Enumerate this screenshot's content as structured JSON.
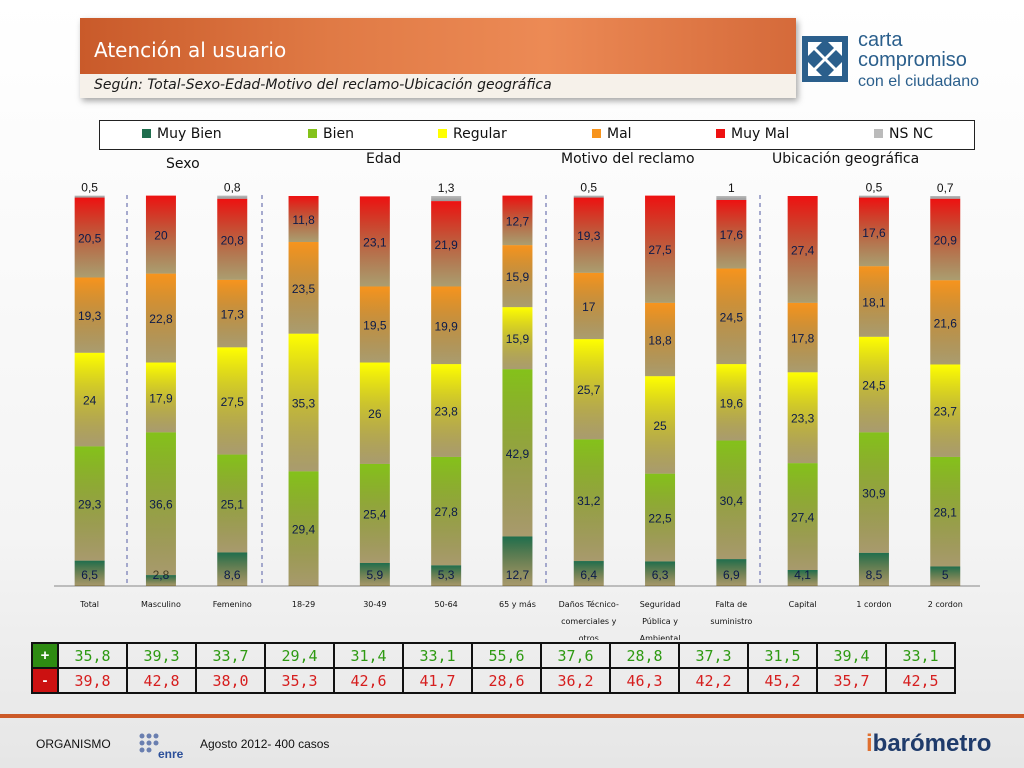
{
  "header": {
    "title": "Atención al usuario",
    "subtitle": "Según: Total-Sexo-Edad-Motivo del reclamo-Ubicación geográfica"
  },
  "logo": {
    "line1": "carta",
    "line2": "compromiso",
    "line3": "con el ciudadano"
  },
  "colors": {
    "muy_bien": "#1f6e4e",
    "bien": "#84c21a",
    "regular": "#ffff00",
    "mal": "#f7941d",
    "muy_mal": "#ee1111",
    "ns_nc": "#bbbbbb",
    "accent": "#cc5a28"
  },
  "chart_data": {
    "type": "bar",
    "stacked": true,
    "percent": true,
    "groups": [
      {
        "label": "Sexo",
        "categories": [
          1,
          2
        ]
      },
      {
        "label": "Edad",
        "categories": [
          3,
          4,
          5,
          6
        ]
      },
      {
        "label": "Motivo del reclamo",
        "categories": [
          7,
          8,
          9
        ]
      },
      {
        "label": "Ubicación geográfica",
        "categories": [
          10,
          11,
          12
        ]
      }
    ],
    "categories": [
      "Total",
      "Masculino",
      "Femenino",
      "18-29",
      "30-49",
      "50-64",
      "65 y más",
      "Daños Técnico-comerciales y otros",
      "Seguridad Pública y Ambiental",
      "Falta de suministro",
      "Capital",
      "1 cordon",
      "2 cordon"
    ],
    "category_lines": [
      [
        "Total"
      ],
      [
        "Masculino"
      ],
      [
        "Femenino"
      ],
      [
        "18-29"
      ],
      [
        "30-49"
      ],
      [
        "50-64"
      ],
      [
        "65 y más"
      ],
      [
        "Daños Técnico-",
        "comerciales y",
        "otros"
      ],
      [
        "Seguridad",
        "Pública y",
        "Ambiental"
      ],
      [
        "Falta de",
        "suministro"
      ],
      [
        "Capital"
      ],
      [
        "1 cordon"
      ],
      [
        "2 cordon"
      ]
    ],
    "series": [
      {
        "name": "Muy Bien",
        "values": [
          6.5,
          2.8,
          8.6,
          0,
          5.9,
          5.3,
          12.7,
          6.4,
          6.3,
          6.9,
          4.1,
          8.5,
          5
        ]
      },
      {
        "name": "Bien",
        "values": [
          29.3,
          36.6,
          25.1,
          29.4,
          25.4,
          27.8,
          42.9,
          31.2,
          22.5,
          30.4,
          27.4,
          30.9,
          28.1
        ]
      },
      {
        "name": "Regular",
        "values": [
          24,
          17.9,
          27.5,
          35.3,
          26,
          23.8,
          15.9,
          25.7,
          25,
          19.6,
          23.3,
          24.5,
          23.7
        ]
      },
      {
        "name": "Mal",
        "values": [
          19.3,
          22.8,
          17.3,
          23.5,
          19.5,
          19.9,
          15.9,
          17,
          18.8,
          24.5,
          17.8,
          18.1,
          21.6
        ]
      },
      {
        "name": "Muy Mal",
        "values": [
          20.5,
          20,
          20.8,
          11.8,
          23.1,
          21.9,
          12.7,
          19.3,
          27.5,
          17.6,
          27.4,
          17.6,
          20.9
        ]
      },
      {
        "name": "NS NC",
        "values": [
          0.5,
          0,
          0.8,
          0,
          0,
          1.3,
          0,
          0.5,
          0,
          1,
          0,
          0.5,
          0.7
        ]
      }
    ],
    "labels": {
      "Muy Bien": [
        "6,5",
        "2,8",
        "8,6",
        "",
        "5,9",
        "5,3",
        "12,7",
        "6,4",
        "6,3",
        "6,9",
        "4,1",
        "8,5",
        "5"
      ],
      "Bien": [
        "29,3",
        "36,6",
        "25,1",
        "29,4",
        "25,4",
        "27,8",
        "42,9",
        "31,2",
        "22,5",
        "30,4",
        "27,4",
        "30,9",
        "28,1"
      ],
      "Regular": [
        "24",
        "17,9",
        "27,5",
        "35,3",
        "26",
        "23,8",
        "15,9",
        "25,7",
        "25",
        "19,6",
        "23,3",
        "24,5",
        "23,7"
      ],
      "Mal": [
        "19,3",
        "22,8",
        "17,3",
        "23,5",
        "19,5",
        "19,9",
        "15,9",
        "17",
        "18,8",
        "24,5",
        "17,8",
        "18,1",
        "21,6"
      ],
      "Muy Mal": [
        "20,5",
        "20",
        "20,8",
        "11,8",
        "23,1",
        "21,9",
        "12,7",
        "19,3",
        "27,5",
        "17,6",
        "27,4",
        "17,6",
        "20,9"
      ],
      "NS NC": [
        "0,5",
        "",
        "0,8",
        "",
        "",
        "1,3",
        "",
        "0,5",
        "",
        "1",
        "",
        "0,5",
        "0,7"
      ]
    },
    "legend_position": "top",
    "grid": false
  },
  "summary": {
    "plus_sign": "+",
    "minus_sign": "-",
    "plus": [
      "35,8",
      "39,3",
      "33,7",
      "29,4",
      "31,4",
      "33,1",
      "55,6",
      "37,6",
      "28,8",
      "37,3",
      "31,5",
      "39,4",
      "33,1"
    ],
    "minus": [
      "39,8",
      "42,8",
      "38,0",
      "35,3",
      "42,6",
      "41,7",
      "28,6",
      "36,2",
      "46,3",
      "42,2",
      "45,2",
      "35,7",
      "42,5"
    ]
  },
  "footer": {
    "org_label": "ORGANISMO",
    "org_logo_text": "enre",
    "date_text": "Agosto 2012- 400 casos",
    "brand_i": "i",
    "brand_rest": "barómetro"
  }
}
